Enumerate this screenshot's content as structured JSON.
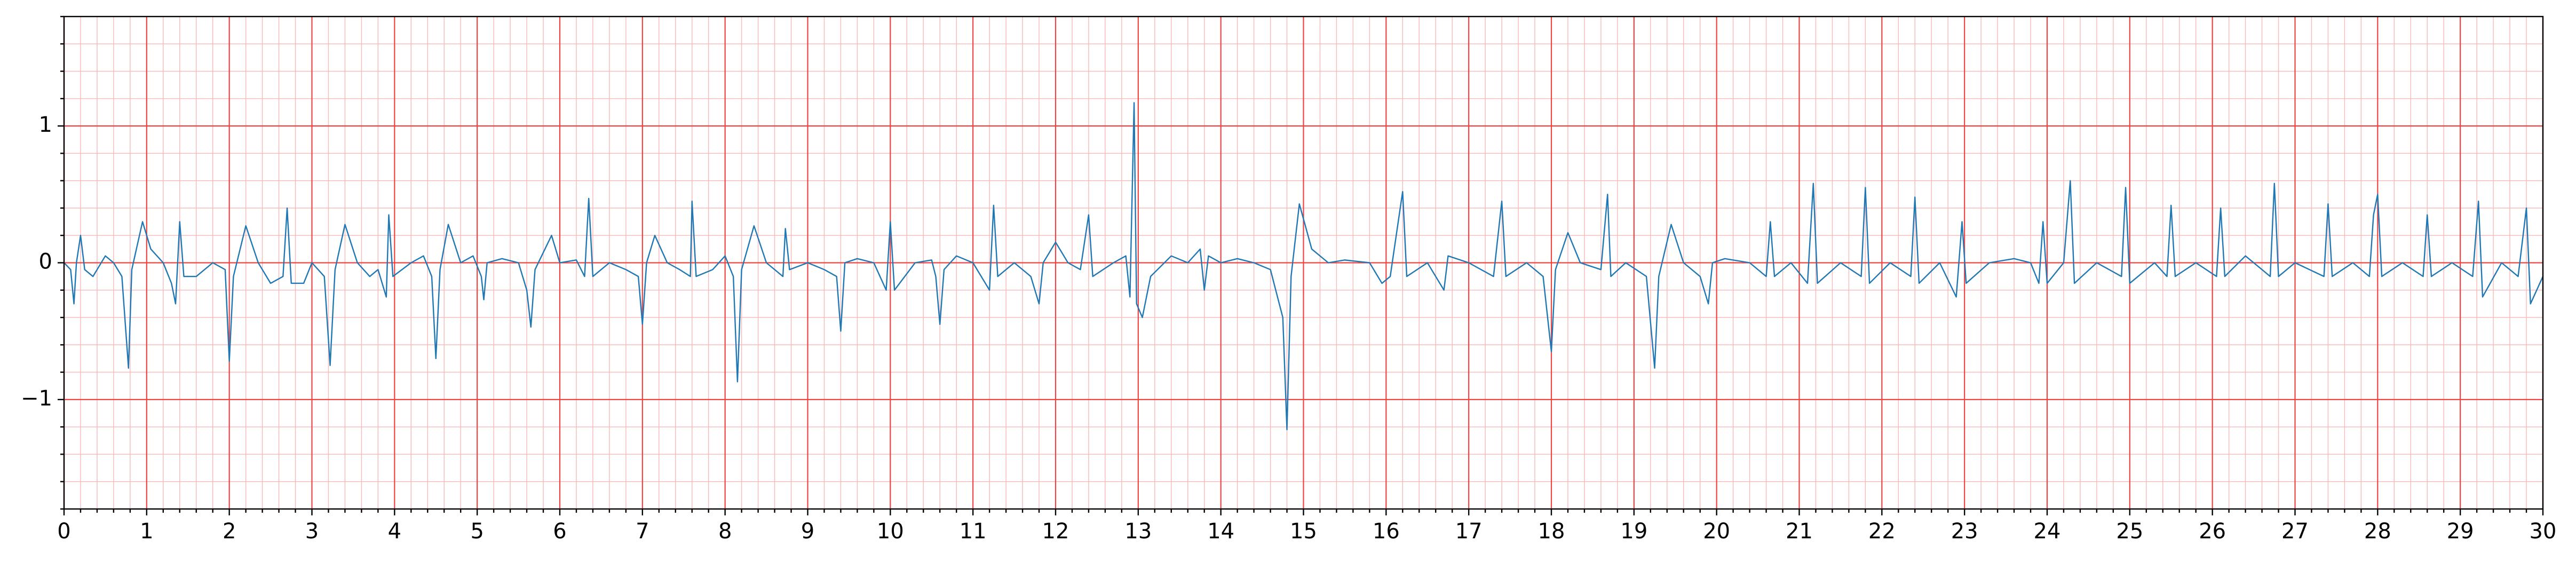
{
  "chart_data": {
    "type": "line",
    "color": "#1f77b4",
    "grid": true,
    "xlim": [
      0,
      30
    ],
    "ylim": [
      -1.8,
      1.8
    ],
    "xticks": [
      0,
      1,
      2,
      3,
      4,
      5,
      6,
      7,
      8,
      9,
      10,
      11,
      12,
      13,
      14,
      15,
      16,
      17,
      18,
      19,
      20,
      21,
      22,
      23,
      24,
      25,
      26,
      27,
      28,
      29,
      30
    ],
    "yticks": [
      {
        "value": -1,
        "label": "−1"
      },
      0,
      1
    ],
    "x": [
      0.0,
      0.08,
      0.12,
      0.15,
      0.2,
      0.25,
      0.35,
      0.5,
      0.6,
      0.7,
      0.78,
      0.82,
      0.95,
      1.05,
      1.2,
      1.3,
      1.35,
      1.4,
      1.45,
      1.6,
      1.8,
      1.95,
      2.0,
      2.05,
      2.2,
      2.35,
      2.5,
      2.65,
      2.7,
      2.75,
      2.9,
      3.0,
      3.15,
      3.22,
      3.28,
      3.4,
      3.55,
      3.7,
      3.8,
      3.9,
      3.93,
      3.98,
      4.2,
      4.35,
      4.45,
      4.5,
      4.55,
      4.65,
      4.8,
      4.95,
      5.05,
      5.08,
      5.12,
      5.3,
      5.5,
      5.6,
      5.65,
      5.7,
      5.9,
      6.0,
      6.2,
      6.3,
      6.35,
      6.4,
      6.6,
      6.8,
      6.95,
      7.0,
      7.05,
      7.15,
      7.3,
      7.45,
      7.58,
      7.6,
      7.65,
      7.85,
      8.0,
      8.1,
      8.15,
      8.2,
      8.35,
      8.5,
      8.7,
      8.73,
      8.78,
      9.0,
      9.2,
      9.35,
      9.4,
      9.45,
      9.6,
      9.8,
      9.95,
      10.0,
      10.05,
      10.3,
      10.5,
      10.55,
      10.6,
      10.65,
      10.8,
      11.0,
      11.2,
      11.25,
      11.3,
      11.5,
      11.7,
      11.8,
      11.85,
      12.0,
      12.15,
      12.3,
      12.4,
      12.45,
      12.7,
      12.85,
      12.9,
      12.95,
      12.98,
      13.05,
      13.15,
      13.4,
      13.6,
      13.75,
      13.8,
      13.85,
      14.0,
      14.2,
      14.4,
      14.6,
      14.75,
      14.8,
      14.85,
      14.95,
      15.1,
      15.3,
      15.5,
      15.8,
      15.95,
      16.05,
      16.2,
      16.25,
      16.5,
      16.7,
      16.75,
      17.0,
      17.3,
      17.4,
      17.45,
      17.7,
      17.9,
      18.0,
      18.05,
      18.2,
      18.35,
      18.6,
      18.68,
      18.72,
      18.9,
      19.15,
      19.25,
      19.3,
      19.45,
      19.6,
      19.8,
      19.9,
      19.95,
      20.1,
      20.4,
      20.6,
      20.65,
      20.7,
      20.9,
      21.1,
      21.17,
      21.22,
      21.5,
      21.75,
      21.8,
      21.85,
      22.1,
      22.35,
      22.4,
      22.45,
      22.7,
      22.9,
      22.97,
      23.02,
      23.3,
      23.6,
      23.8,
      23.9,
      23.95,
      24.0,
      24.2,
      24.28,
      24.33,
      24.6,
      24.9,
      24.95,
      25.0,
      25.3,
      25.45,
      25.5,
      25.55,
      25.8,
      26.05,
      26.1,
      26.15,
      26.4,
      26.7,
      26.75,
      26.8,
      27.0,
      27.35,
      27.4,
      27.45,
      27.7,
      27.9,
      27.95,
      28.0,
      28.05,
      28.3,
      28.55,
      28.6,
      28.65,
      28.9,
      29.15,
      29.22,
      29.27,
      29.5,
      29.7,
      29.8,
      29.85,
      30.0
    ],
    "values": [
      0.0,
      -0.05,
      -0.3,
      0.0,
      0.2,
      -0.05,
      -0.1,
      0.05,
      0.0,
      -0.1,
      -0.77,
      -0.05,
      0.3,
      0.1,
      0.0,
      -0.15,
      -0.3,
      0.3,
      -0.1,
      -0.1,
      0.0,
      -0.05,
      -0.72,
      -0.1,
      0.27,
      0.0,
      -0.15,
      -0.1,
      0.4,
      -0.15,
      -0.15,
      0.0,
      -0.1,
      -0.75,
      -0.05,
      0.28,
      0.0,
      -0.1,
      -0.05,
      -0.25,
      0.35,
      -0.1,
      0.0,
      0.05,
      -0.1,
      -0.7,
      -0.05,
      0.28,
      0.0,
      0.05,
      -0.1,
      -0.27,
      0.0,
      0.03,
      0.0,
      -0.2,
      -0.47,
      -0.05,
      0.2,
      0.0,
      0.02,
      -0.1,
      0.47,
      -0.1,
      0.0,
      -0.05,
      -0.1,
      -0.45,
      0.0,
      0.2,
      0.0,
      -0.05,
      -0.1,
      0.45,
      -0.1,
      -0.05,
      0.05,
      -0.1,
      -0.87,
      -0.05,
      0.27,
      0.0,
      -0.1,
      0.25,
      -0.05,
      0.0,
      -0.05,
      -0.1,
      -0.5,
      0.0,
      0.03,
      0.0,
      -0.2,
      0.3,
      -0.2,
      0.0,
      0.02,
      -0.1,
      -0.45,
      -0.05,
      0.05,
      0.0,
      -0.2,
      0.42,
      -0.1,
      0.0,
      -0.1,
      -0.3,
      0.0,
      0.15,
      0.0,
      -0.05,
      0.35,
      -0.1,
      0.0,
      0.05,
      -0.25,
      1.17,
      -0.3,
      -0.4,
      -0.1,
      0.05,
      0.0,
      0.1,
      -0.2,
      0.05,
      0.0,
      0.03,
      0.0,
      -0.05,
      -0.4,
      -1.22,
      -0.1,
      0.43,
      0.1,
      0.0,
      0.02,
      0.0,
      -0.15,
      -0.1,
      0.52,
      -0.1,
      0.0,
      -0.2,
      0.05,
      0.0,
      -0.1,
      0.45,
      -0.1,
      0.0,
      -0.1,
      -0.65,
      -0.05,
      0.22,
      0.0,
      -0.05,
      0.5,
      -0.1,
      0.0,
      -0.1,
      -0.77,
      -0.1,
      0.28,
      0.0,
      -0.1,
      -0.3,
      0.0,
      0.03,
      0.0,
      -0.1,
      0.3,
      -0.1,
      0.0,
      -0.15,
      0.58,
      -0.15,
      0.0,
      -0.1,
      0.55,
      -0.15,
      0.0,
      -0.1,
      0.48,
      -0.15,
      0.0,
      -0.25,
      0.3,
      -0.15,
      0.0,
      0.03,
      0.0,
      -0.15,
      0.3,
      -0.15,
      0.0,
      0.6,
      -0.15,
      0.0,
      -0.1,
      0.55,
      -0.15,
      0.0,
      -0.1,
      0.42,
      -0.1,
      0.0,
      -0.1,
      0.4,
      -0.1,
      0.05,
      -0.1,
      0.58,
      -0.1,
      0.0,
      -0.1,
      0.43,
      -0.1,
      0.0,
      -0.1,
      0.35,
      0.5,
      -0.1,
      0.0,
      -0.1,
      0.35,
      -0.1,
      0.0,
      -0.1,
      0.45,
      -0.25,
      0.0,
      -0.1,
      0.4,
      -0.3,
      -0.1
    ]
  }
}
